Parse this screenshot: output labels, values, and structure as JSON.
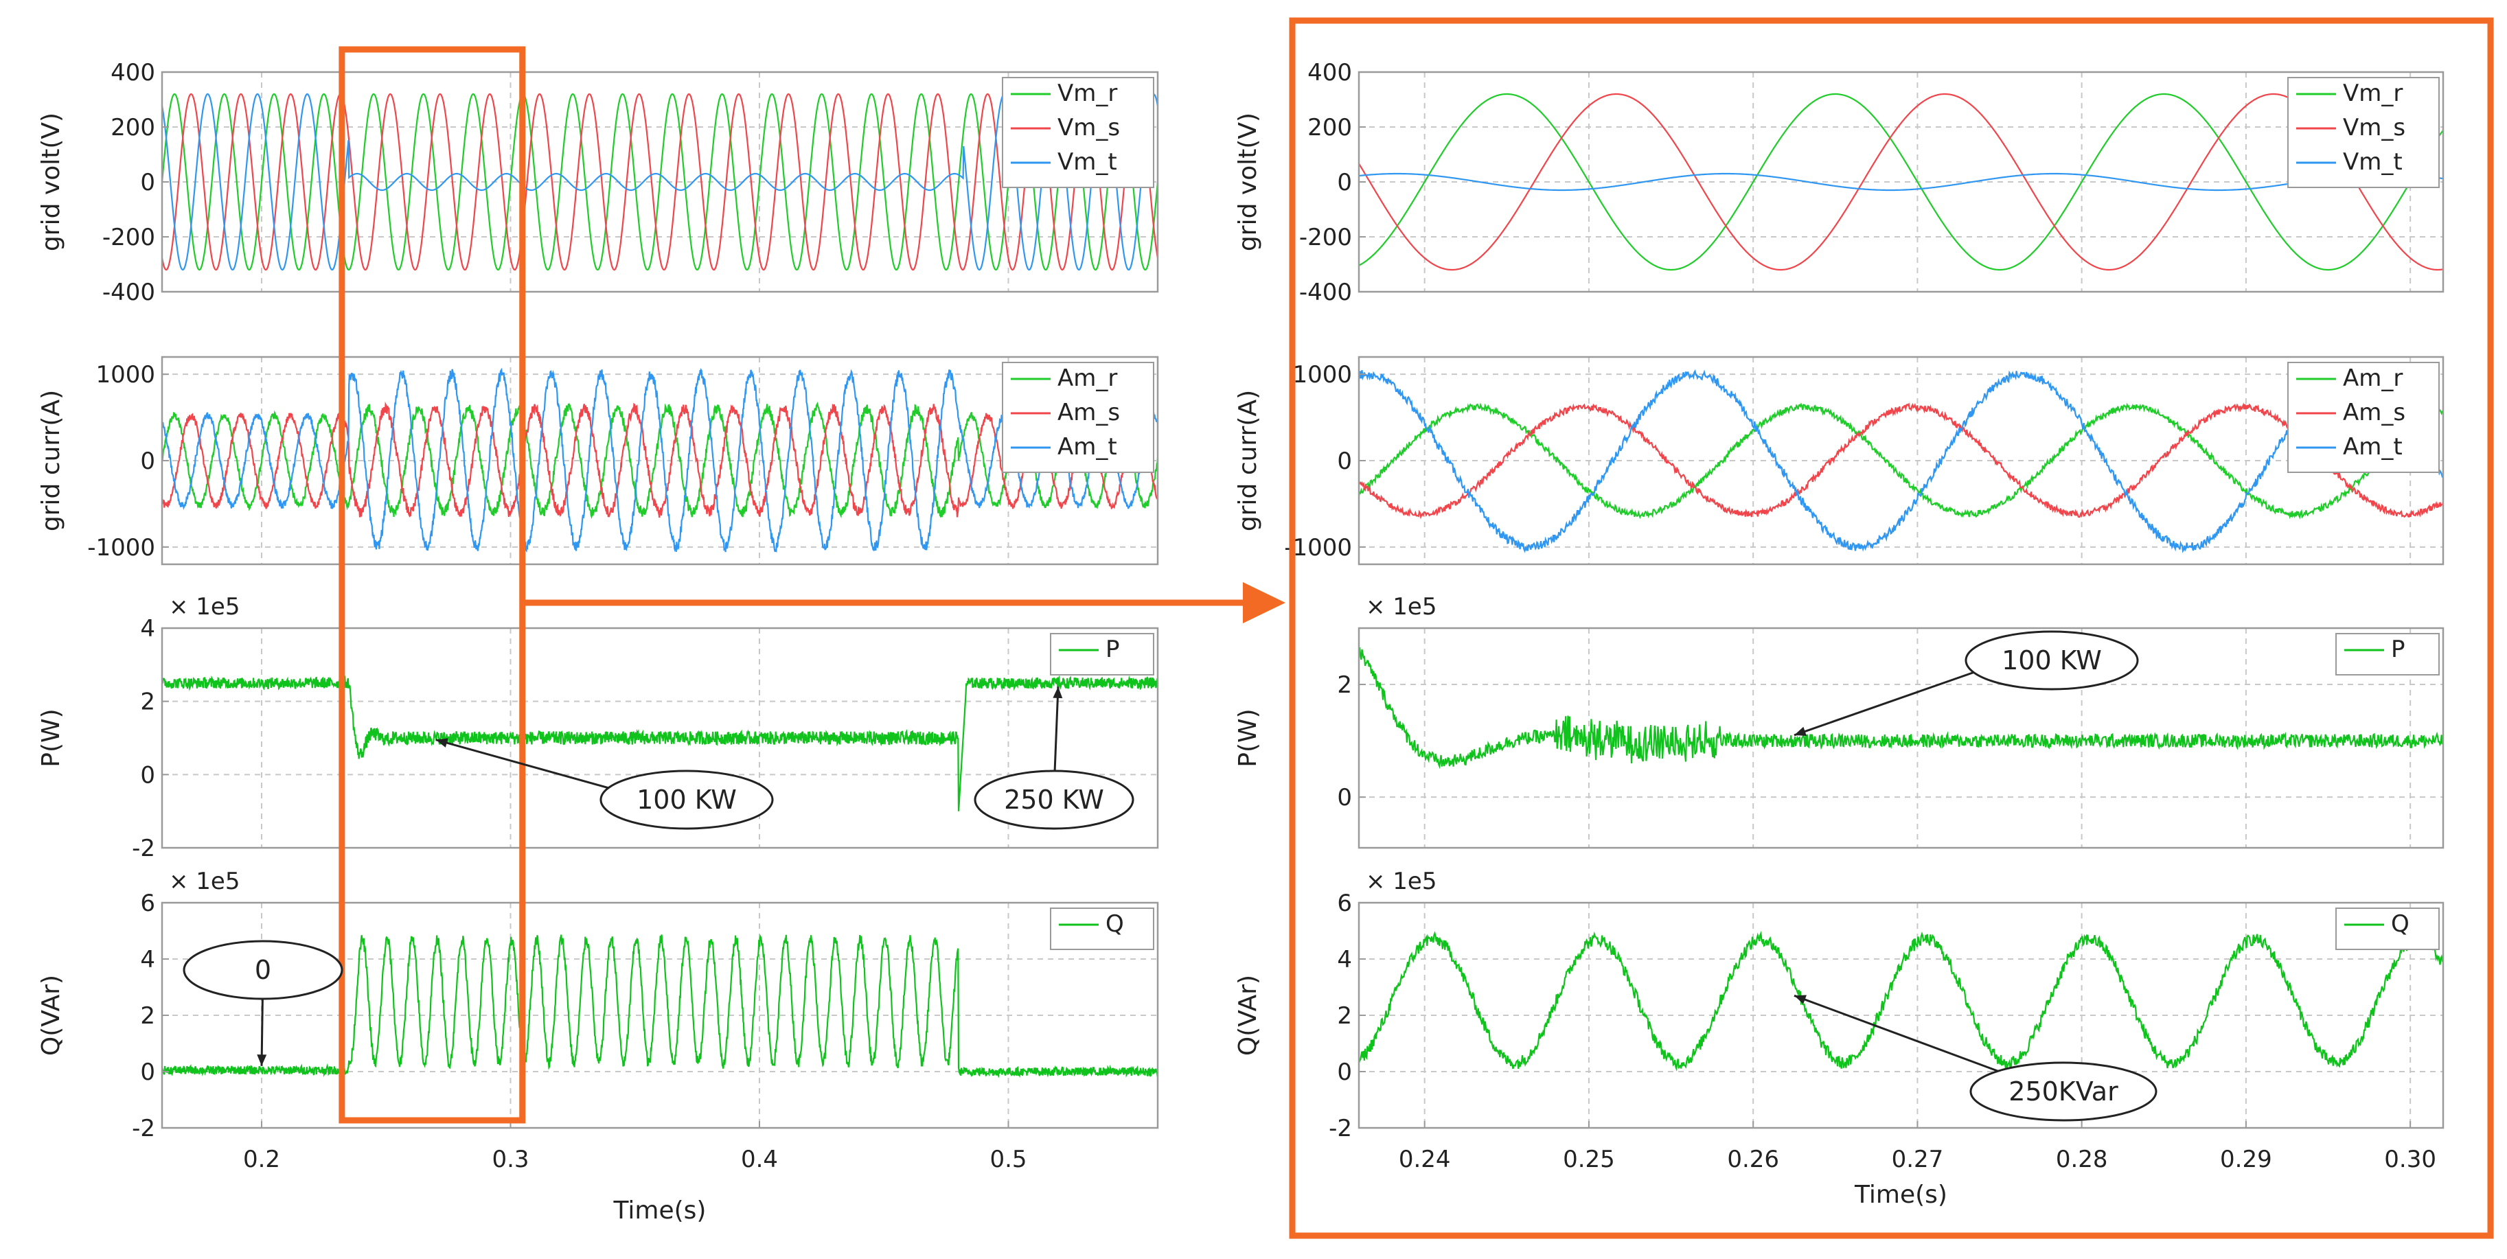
{
  "colors": {
    "r": "#1fcc2a",
    "s": "#f0454b",
    "t": "#2f97f2",
    "pq": "#10c21c",
    "frame": "#f26a24",
    "grid": "#c8c8c8",
    "axis": "#9a9a9a"
  },
  "chart_data": [
    {
      "id": "left",
      "type": "line",
      "xlabel": "Time(s)",
      "xlim": [
        0.16,
        0.56
      ],
      "xticks": [
        0.2,
        0.3,
        0.4,
        0.5
      ],
      "xtick_labels": [
        "0.2",
        "0.3",
        "0.4",
        "0.5"
      ],
      "zoom_window": [
        0.235,
        0.302
      ],
      "panels": [
        {
          "id": "volt",
          "ylabel": "grid volt(V)",
          "multiplier": "",
          "ylim": [
            -400,
            400
          ],
          "yticks": [
            400,
            200,
            0,
            -200,
            -400
          ],
          "ytick_labels": [
            "400",
            "200",
            "0",
            "-200",
            "-400"
          ],
          "legend": [
            "Vm_r",
            "Vm_s",
            "Vm_t"
          ],
          "series": [
            {
              "name": "Vm_r",
              "color_key": "r",
              "description": "3-phase 50 Hz, 320 V amplitude; after t=0.235 the t phase collapses to ~30 V"
            }
          ]
        },
        {
          "id": "curr",
          "ylabel": "grid curr(A)",
          "multiplier": "",
          "ylim": [
            -1200,
            1200
          ],
          "yticks": [
            1000,
            0,
            -1000
          ],
          "ytick_labels": [
            "1000",
            "0",
            "-1000"
          ],
          "legend": [
            "Am_r",
            "Am_s",
            "Am_t"
          ],
          "amplitude_before": 520,
          "amplitude_after": 1000
        },
        {
          "id": "p",
          "ylabel": "P(W)",
          "multiplier": "× 1e5",
          "ylim": [
            -2,
            4
          ],
          "yticks": [
            4,
            2,
            0,
            -2
          ],
          "ytick_labels": [
            "4",
            "2",
            "0",
            "-2"
          ],
          "legend": [
            "P"
          ],
          "level_before": 2.5,
          "level_during": 1.0,
          "level_after": 2.5,
          "event_start": 0.235,
          "event_end": 0.48
        },
        {
          "id": "q",
          "ylabel": "Q(VAr)",
          "multiplier": "× 1e5",
          "ylim": [
            -2,
            6
          ],
          "yticks": [
            6,
            4,
            2,
            0,
            -2
          ],
          "ytick_labels": [
            "6",
            "4",
            "2",
            "0",
            "-2"
          ],
          "legend": [
            "Q"
          ],
          "level_before": 0,
          "oscillation_center": 2.5,
          "oscillation_amplitude": 2.2,
          "level_after": 0
        }
      ],
      "annotations": [
        {
          "panel": "p",
          "text": "100 KW",
          "x": 0.27,
          "y": 0.95
        },
        {
          "panel": "p",
          "text": "250 KW",
          "x": 0.52,
          "y": 2.4
        },
        {
          "panel": "q",
          "text": "0",
          "x": 0.2,
          "y": 0.2
        }
      ]
    },
    {
      "id": "right",
      "type": "line",
      "xlabel": "Time(s)",
      "xlim": [
        0.236,
        0.302
      ],
      "xticks": [
        0.24,
        0.25,
        0.26,
        0.27,
        0.28,
        0.29,
        0.3
      ],
      "xtick_labels": [
        "0.24",
        "0.25",
        "0.26",
        "0.27",
        "0.28",
        "0.29",
        "0.30"
      ],
      "panels": [
        {
          "id": "volt",
          "ylabel": "grid volt(V)",
          "multiplier": "",
          "ylim": [
            -400,
            400
          ],
          "yticks": [
            400,
            200,
            0,
            -200,
            -400
          ],
          "ytick_labels": [
            "400",
            "200",
            "0",
            "-200",
            "-400"
          ],
          "legend": [
            "Vm_r",
            "Vm_s",
            "Vm_t"
          ]
        },
        {
          "id": "curr",
          "ylabel": "grid curr(A)",
          "multiplier": "",
          "ylim": [
            -1200,
            1200
          ],
          "yticks": [
            1000,
            0,
            -1000
          ],
          "ytick_labels": [
            "1000",
            "0",
            "-1000"
          ],
          "legend": [
            "Am_r",
            "Am_s",
            "Am_t"
          ]
        },
        {
          "id": "p",
          "ylabel": "P(W)",
          "multiplier": "× 1e5",
          "ylim": [
            -0.9,
            3
          ],
          "yticks": [
            2,
            0
          ],
          "ytick_labels": [
            "2",
            "0"
          ],
          "legend": [
            "P"
          ]
        },
        {
          "id": "q",
          "ylabel": "Q(VAr)",
          "multiplier": "× 1e5",
          "ylim": [
            -2,
            6
          ],
          "yticks": [
            6,
            4,
            2,
            0,
            -2
          ],
          "ytick_labels": [
            "6",
            "4",
            "2",
            "0",
            "-2"
          ],
          "legend": [
            "Q"
          ]
        }
      ],
      "annotations": [
        {
          "panel": "p",
          "text": "100 KW",
          "x": 0.2625,
          "y": 1.1
        },
        {
          "panel": "q",
          "text": "250KVar",
          "x": 0.2625,
          "y": 2.7
        }
      ]
    }
  ]
}
